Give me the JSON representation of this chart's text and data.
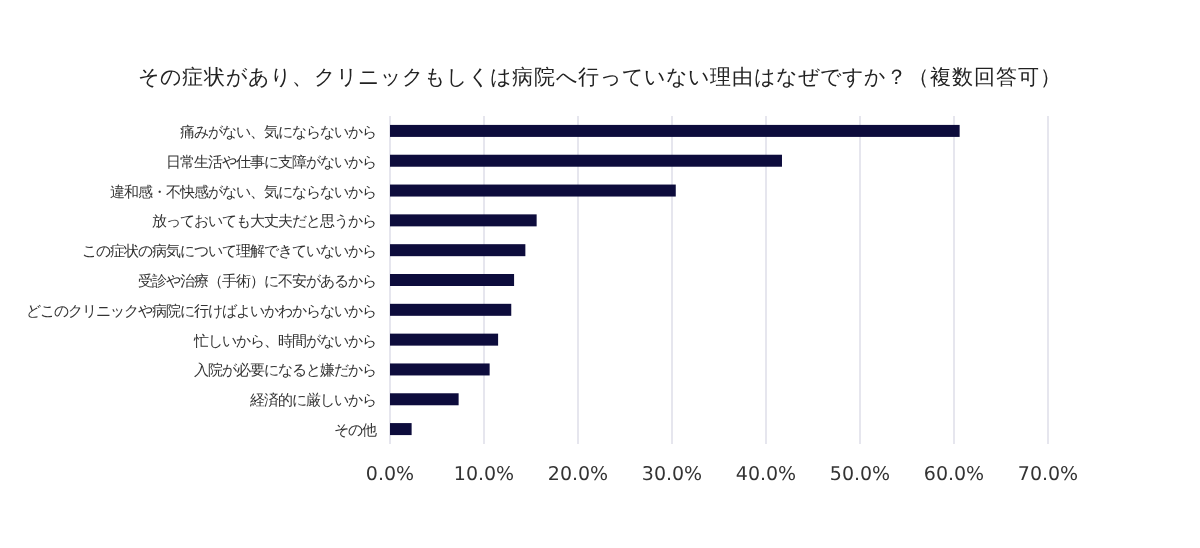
{
  "chart_data": {
    "type": "bar",
    "orientation": "horizontal",
    "title": "その症状があり、クリニックもしくは病院へ行っていない理由はなぜですか？（複数回答可）",
    "categories": [
      "痛みがない、気にならないから",
      "日常生活や仕事に支障がないから",
      "違和感・不快感がない、気にならないから",
      "放っておいても大丈夫だと思うから",
      "この症状の病気について理解できていないから",
      "受診や治療（手術）に不安があるから",
      "どこのクリニックや病院に行けばよいかわからないから",
      "忙しいから、時間がないから",
      "入院が必要になると嫌だから",
      "経済的に厳しいから",
      "その他"
    ],
    "values": [
      60.6,
      41.7,
      30.4,
      15.6,
      14.4,
      13.2,
      12.9,
      11.5,
      10.6,
      7.3,
      2.3
    ],
    "color": "#0d0c3c",
    "xlim": [
      0,
      70
    ],
    "xticks": [
      {
        "value": 0,
        "label": "0.0%"
      },
      {
        "value": 10,
        "label": "10.0%"
      },
      {
        "value": 20,
        "label": "20.0%"
      },
      {
        "value": 30,
        "label": "30.0%"
      },
      {
        "value": 40,
        "label": "40.0%"
      },
      {
        "value": 50,
        "label": "50.0%"
      },
      {
        "value": 60,
        "label": "60.0%"
      },
      {
        "value": 70,
        "label": "70.0%"
      }
    ],
    "grid": "x"
  }
}
